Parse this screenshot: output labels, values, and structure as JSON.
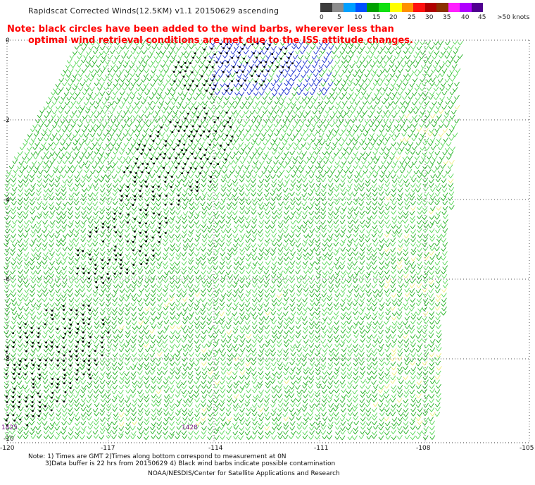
{
  "title": "Rapidscat Corrected Winds(12.5KM) v1.1 20150629 ascending",
  "note_line1": "Note: black circles have been added to the wind barbs, wherever less than",
  "note_line2": "optimal wind retrieval conditions are met due to the ISS attitude changes.",
  "legend": {
    "labels": [
      "0",
      "5",
      "10",
      "15",
      "20",
      "25",
      "30",
      "35",
      "40",
      "45",
      ">50 knots"
    ],
    "colors": [
      "#3c3c3c",
      "#8c8c8c",
      "#00a0ff",
      "#0050ff",
      "#00a000",
      "#10e010",
      "#ffff00",
      "#ff9000",
      "#ff1010",
      "#b00000",
      "#8a3000",
      "#ff20ff",
      "#b000ff",
      "#500090"
    ]
  },
  "axes": {
    "x_labels": [
      "-120",
      "-117",
      "-114",
      "-111",
      "-108",
      "-105"
    ],
    "y_labels": [
      "0",
      "-2",
      "-4",
      "-6",
      "-8",
      "-10"
    ]
  },
  "time_labels": [
    "1425",
    "1428"
  ],
  "footer_line1": "Note: 1) Times are GMT 2)Times along bottom correspond to measurement at 0N",
  "footer_line2": "3)Data buffer is 22 hrs from 20150629 4) Black wind barbs indicate possible contamination",
  "credit": "NOAA/NESDIS/Center for Satellite Applications and Research"
}
